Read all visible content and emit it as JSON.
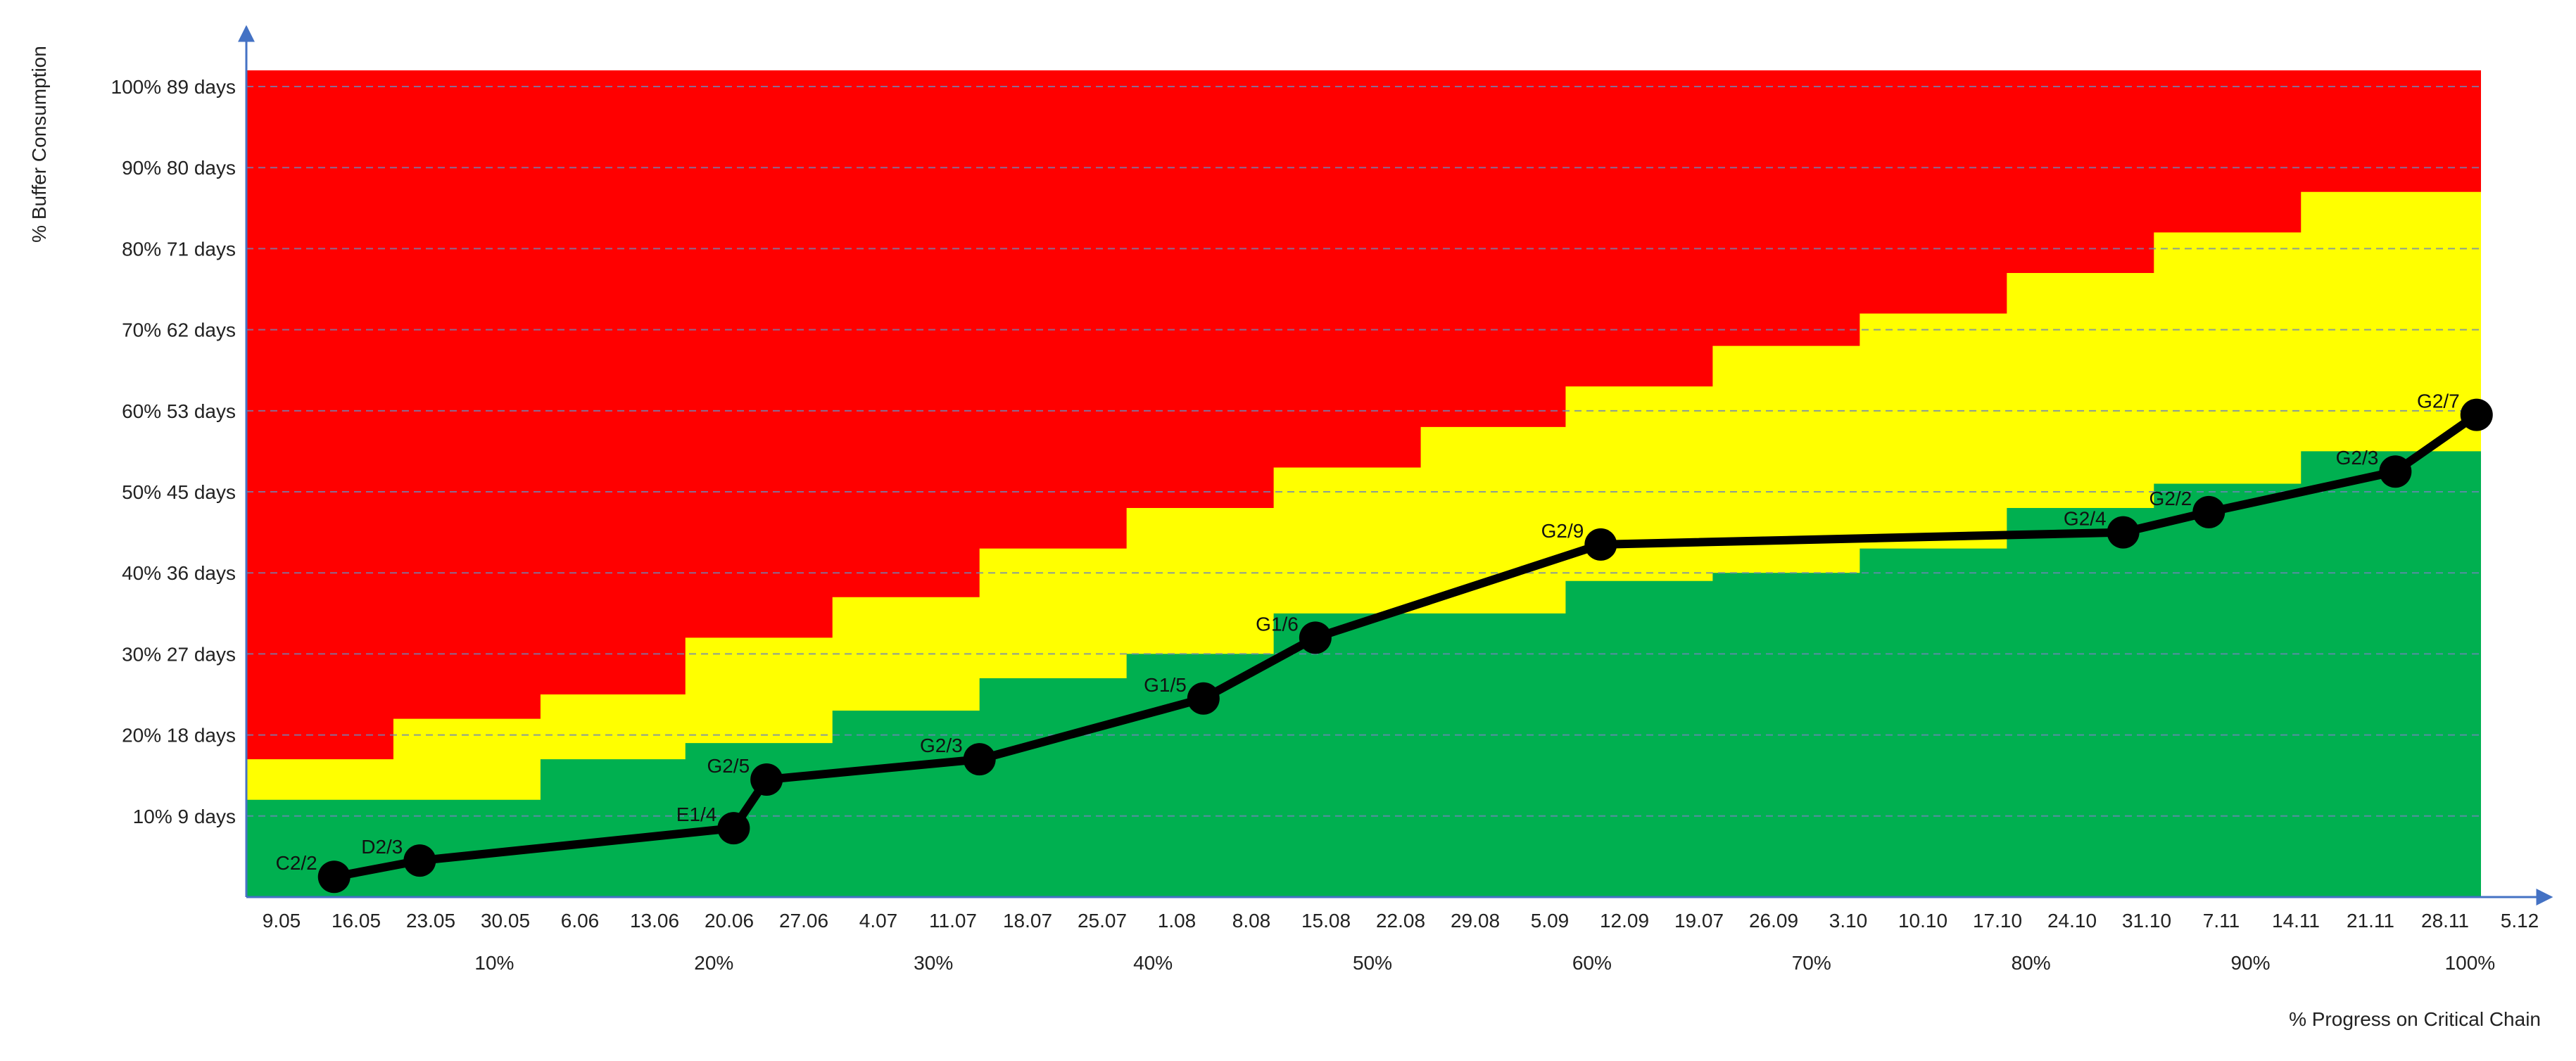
{
  "chart_data": {
    "type": "line",
    "xlabel": "% Progress on Critical Chain",
    "ylabel": "% Buffer Consumption",
    "x_ticks": [
      "9.05",
      "16.05",
      "23.05",
      "30.05",
      "6.06",
      "13.06",
      "20.06",
      "27.06",
      "4.07",
      "11.07",
      "18.07",
      "25.07",
      "1.08",
      "8.08",
      "15.08",
      "22.08",
      "29.08",
      "5.09",
      "12.09",
      "19.07",
      "26.09",
      "3.10",
      "10.10",
      "17.10",
      "24.10",
      "31.10",
      "7.11",
      "14.11",
      "21.11",
      "28.11",
      "5.12"
    ],
    "progress_ticks": [
      {
        "label": "10%",
        "x": 10
      },
      {
        "label": "20%",
        "x": 20
      },
      {
        "label": "30%",
        "x": 30
      },
      {
        "label": "40%",
        "x": 40
      },
      {
        "label": "50%",
        "x": 50
      },
      {
        "label": "60%",
        "x": 60
      },
      {
        "label": "70%",
        "x": 70
      },
      {
        "label": "80%",
        "x": 80
      },
      {
        "label": "90%",
        "x": 90
      },
      {
        "label": "100%",
        "x": 100
      }
    ],
    "y_ticks": [
      {
        "y": 10,
        "pct": "10%",
        "days": "9 days"
      },
      {
        "y": 20,
        "pct": "20%",
        "days": "18 days"
      },
      {
        "y": 30,
        "pct": "30%",
        "days": "27 days"
      },
      {
        "y": 40,
        "pct": "40%",
        "days": "36 days"
      },
      {
        "y": 50,
        "pct": "50%",
        "days": "45 days"
      },
      {
        "y": 60,
        "pct": "60%",
        "days": "53 days"
      },
      {
        "y": 70,
        "pct": "70%",
        "days": "62 days"
      },
      {
        "y": 80,
        "pct": "80%",
        "days": "71 days"
      },
      {
        "y": 90,
        "pct": "90%",
        "days": "80 days"
      },
      {
        "y": 100,
        "pct": "100%",
        "days": "89 days"
      }
    ],
    "xlim": [
      -1.3,
      100.5
    ],
    "ylim": [
      0,
      102
    ],
    "grid": "horizontal dashed",
    "zones": {
      "red": "#ff0000",
      "yellow": "#ffff00",
      "green": "#00b050",
      "steps_x": [
        -1.3,
        5.4,
        12.1,
        18.7,
        25.4,
        32.1,
        38.8,
        45.5,
        52.2,
        58.8,
        65.5,
        72.2,
        78.9,
        85.6,
        92.3,
        100.5
      ],
      "yellow_top": [
        17,
        22,
        25,
        32,
        37,
        43,
        48,
        53,
        58,
        63,
        68,
        72,
        77,
        82,
        87
      ],
      "green_top": [
        12,
        12,
        17,
        19,
        23,
        27,
        30,
        35,
        35,
        39,
        40,
        43,
        48,
        51,
        55
      ]
    },
    "series": [
      {
        "color": "#000000",
        "points": [
          {
            "x": 2.7,
            "y": 2.5,
            "label": "C2/2"
          },
          {
            "x": 6.6,
            "y": 4.5,
            "label": "D2/3"
          },
          {
            "x": 20.9,
            "y": 8.5,
            "label": "E1/4"
          },
          {
            "x": 22.4,
            "y": 14.5,
            "label": "G2/5"
          },
          {
            "x": 32.1,
            "y": 17,
            "label": "G2/3"
          },
          {
            "x": 42.3,
            "y": 24.5,
            "label": "G1/5"
          },
          {
            "x": 47.4,
            "y": 32,
            "label": "G1/6"
          },
          {
            "x": 60.4,
            "y": 43.5,
            "label": "G2/9"
          },
          {
            "x": 84.2,
            "y": 45,
            "label": "G2/4"
          },
          {
            "x": 88.1,
            "y": 47.5,
            "label": "G2/2"
          },
          {
            "x": 96.6,
            "y": 52.5,
            "label": "G2/3"
          },
          {
            "x": 100.3,
            "y": 59.5,
            "label": "G2/7"
          }
        ]
      }
    ]
  }
}
